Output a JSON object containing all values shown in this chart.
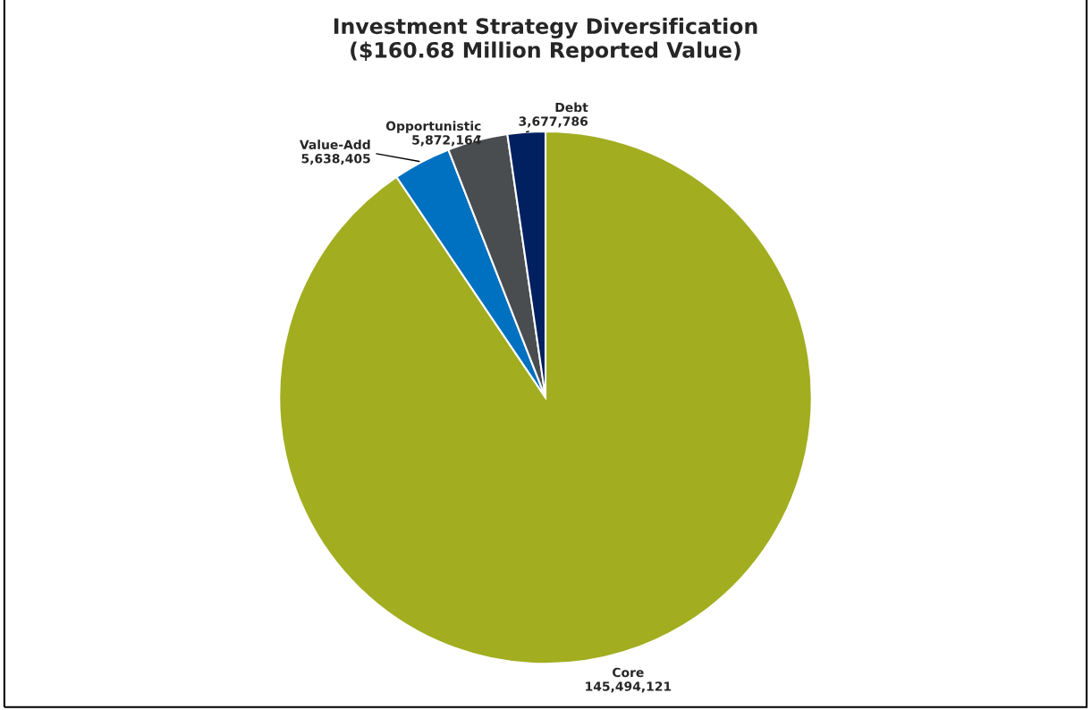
{
  "chart_data": {
    "type": "pie",
    "title": "Investment Strategy Diversification\n($160.68 Million Reported Value)",
    "categories": [
      "Core",
      "Value-Add",
      "Opportunistic",
      "Debt"
    ],
    "values": [
      145494121,
      5638405,
      5872164,
      3677786
    ],
    "colors": [
      "#a2ad20",
      "#0070c0",
      "#4a4d50",
      "#002060"
    ],
    "value_labels": [
      "145,494,121",
      "5,638,405",
      "5,872,164",
      "3,677,786"
    ],
    "legend": false
  }
}
